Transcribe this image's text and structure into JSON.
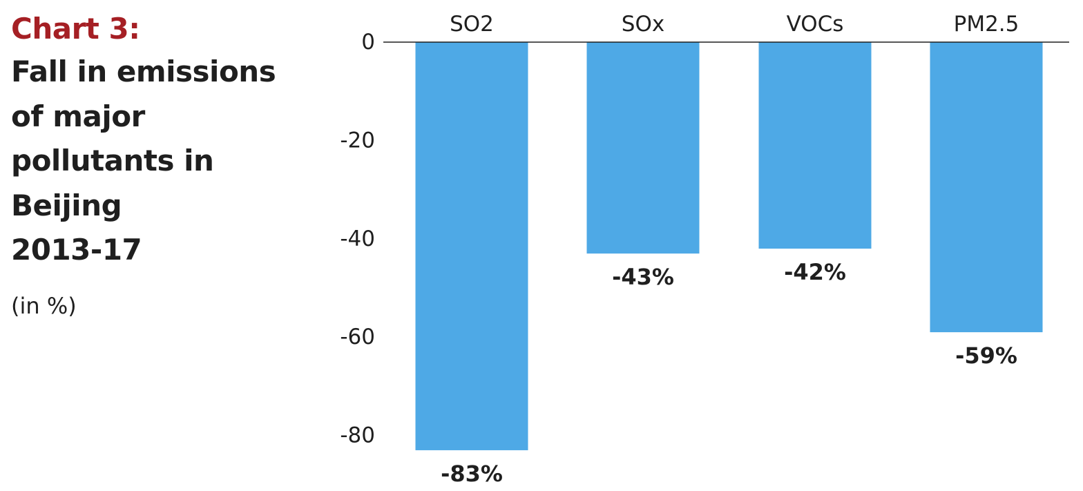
{
  "header": {
    "chart_label": "Chart 3:",
    "title_lines": [
      "Fall in emissions",
      "of major",
      "pollutants in",
      "Beijing",
      "2013-17"
    ],
    "subtitle": "(in %)"
  },
  "colors": {
    "label_red": "#a51f24",
    "bar_blue": "#4ea9e6",
    "text": "#1f1f1f",
    "axis": "#1f1f1f"
  },
  "chart_data": {
    "type": "bar",
    "title": "Chart 3: Fall in emissions of major pollutants in Beijing 2013-17",
    "subtitle": "(in %)",
    "categories": [
      "SO2",
      "SOx",
      "VOCs",
      "PM2.5"
    ],
    "values": [
      -83,
      -43,
      -42,
      -59
    ],
    "data_labels": [
      "-83%",
      "-43%",
      "-42%",
      "-59%"
    ],
    "yticks": [
      0,
      -20,
      -40,
      -60,
      -80
    ],
    "ylim": [
      -83,
      0
    ],
    "category_axis_position": "top",
    "grid": false,
    "legend": false
  }
}
